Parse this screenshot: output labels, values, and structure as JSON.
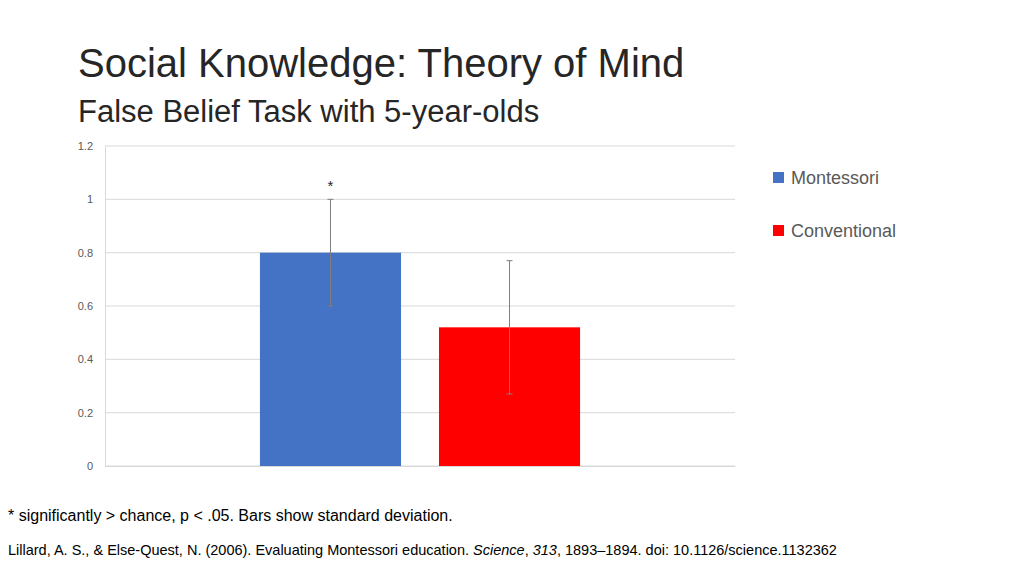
{
  "chart_data": {
    "type": "bar",
    "title": "Social Knowledge: Theory of Mind",
    "subtitle": "False Belief Task with 5-year-olds",
    "categories": [
      null
    ],
    "series": [
      {
        "name": "Montessori",
        "color": "#4472c4",
        "values": [
          0.8
        ],
        "error": [
          0.2
        ],
        "annotation": "*"
      },
      {
        "name": "Conventional",
        "color": "#ff0000",
        "values": [
          0.52
        ],
        "error": [
          0.25
        ]
      }
    ],
    "ylim": [
      0,
      1.2
    ],
    "yticks": [
      0,
      0.2,
      0.4,
      0.6,
      0.8,
      1,
      1.2
    ],
    "grid": true,
    "legend": "right",
    "footnote": "* significantly > chance, p < .05. Bars show standard deviation.",
    "citation": [
      "Lillard, A. S., & Else-Quest, N. (2006). Evaluating Montessori education. ",
      "Science",
      ", ",
      "313",
      ", 1893–1894. doi: 10.1126/science.1132362"
    ]
  }
}
